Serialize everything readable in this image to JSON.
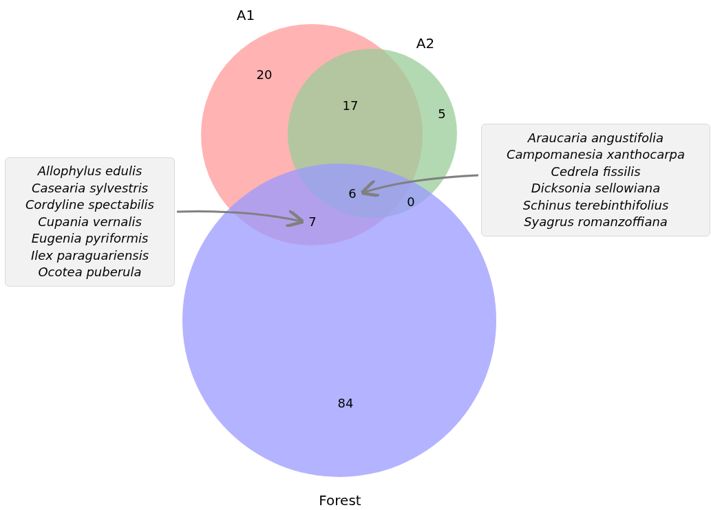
{
  "chart_data": {
    "type": "other",
    "data_labels": true,
    "categories": [
      null,
      null,
      null,
      null,
      null,
      null,
      null
    ],
    "values": [
      20,
      17,
      5,
      6,
      0,
      7,
      84
    ],
    "annotations": [
      "A1",
      "A2",
      "Forest",
      "Allophylus edulis\nCasearia sylvestris\nCordyline spectabilis\nCupania vernalis\nEugenia pyriformis\nIlex paraguariensis\nOcotea puberula",
      "Araucaria angustifolia\nCampomanesia xanthocarpa\nCedrela fissilis\nDicksonia sellowiana\nSchinus terebinthifolius\nSyagrus romanzoffiana"
    ]
  }
}
